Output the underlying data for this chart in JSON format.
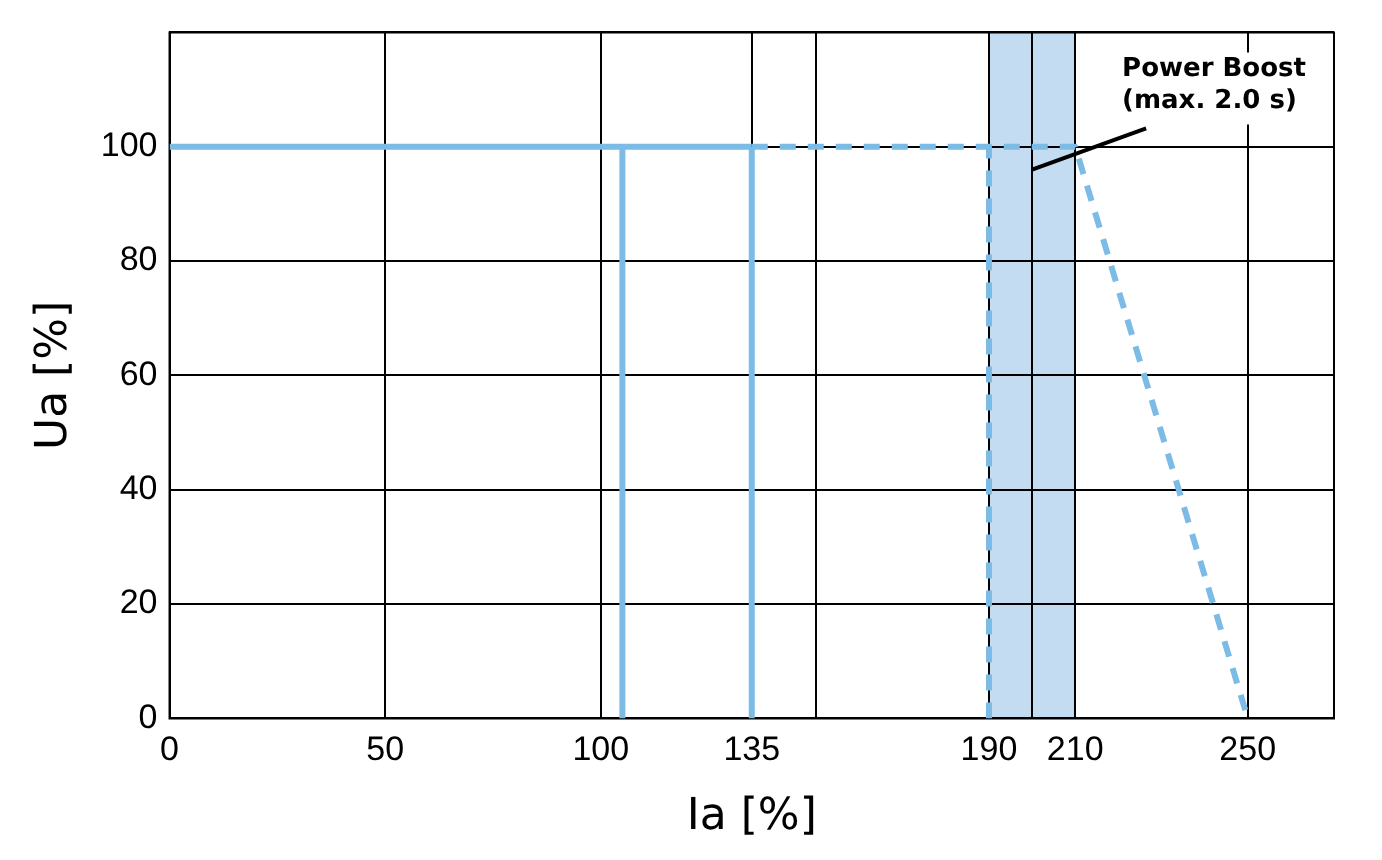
{
  "chart_data": {
    "type": "line",
    "xlabel": "Ia [%]",
    "ylabel": "Ua [%]",
    "xlim": [
      0,
      270
    ],
    "xticks": [
      0,
      50,
      100,
      135,
      {
        "value": 150,
        "label": null
      },
      190,
      {
        "value": 200,
        "label": null
      },
      210,
      250
    ],
    "ylim": [
      0,
      120
    ],
    "yticks": [
      0,
      20,
      40,
      60,
      80,
      100,
      {
        "value": 120,
        "label": null
      }
    ],
    "grid": true,
    "legend": false,
    "marker": "none",
    "series": [
      {
        "color": "#7bbbe6",
        "line_style": "solid",
        "x": [
          0,
          135
        ],
        "values": [
          100,
          100
        ]
      },
      {
        "color": "#7bbbe6",
        "line_style": "solid",
        "x": [
          105,
          105
        ],
        "values": [
          0,
          100
        ]
      },
      {
        "color": "#7bbbe6",
        "line_style": "solid",
        "x": [
          135,
          135
        ],
        "values": [
          0,
          100
        ]
      },
      {
        "color": "#7bbbe6",
        "line_style": "dashed",
        "x": [
          135,
          210,
          250
        ],
        "values": [
          100,
          100,
          0
        ]
      },
      {
        "color": "#7bbbe6",
        "line_style": "dashed",
        "x": [
          190,
          190
        ],
        "values": [
          0,
          100
        ]
      }
    ],
    "bands": [
      {
        "axis": "x",
        "from": 190,
        "to": 210,
        "color": "#c3dcf1"
      }
    ],
    "annotations": [
      "Power Boost\n(max. 2.0 s)"
    ]
  }
}
